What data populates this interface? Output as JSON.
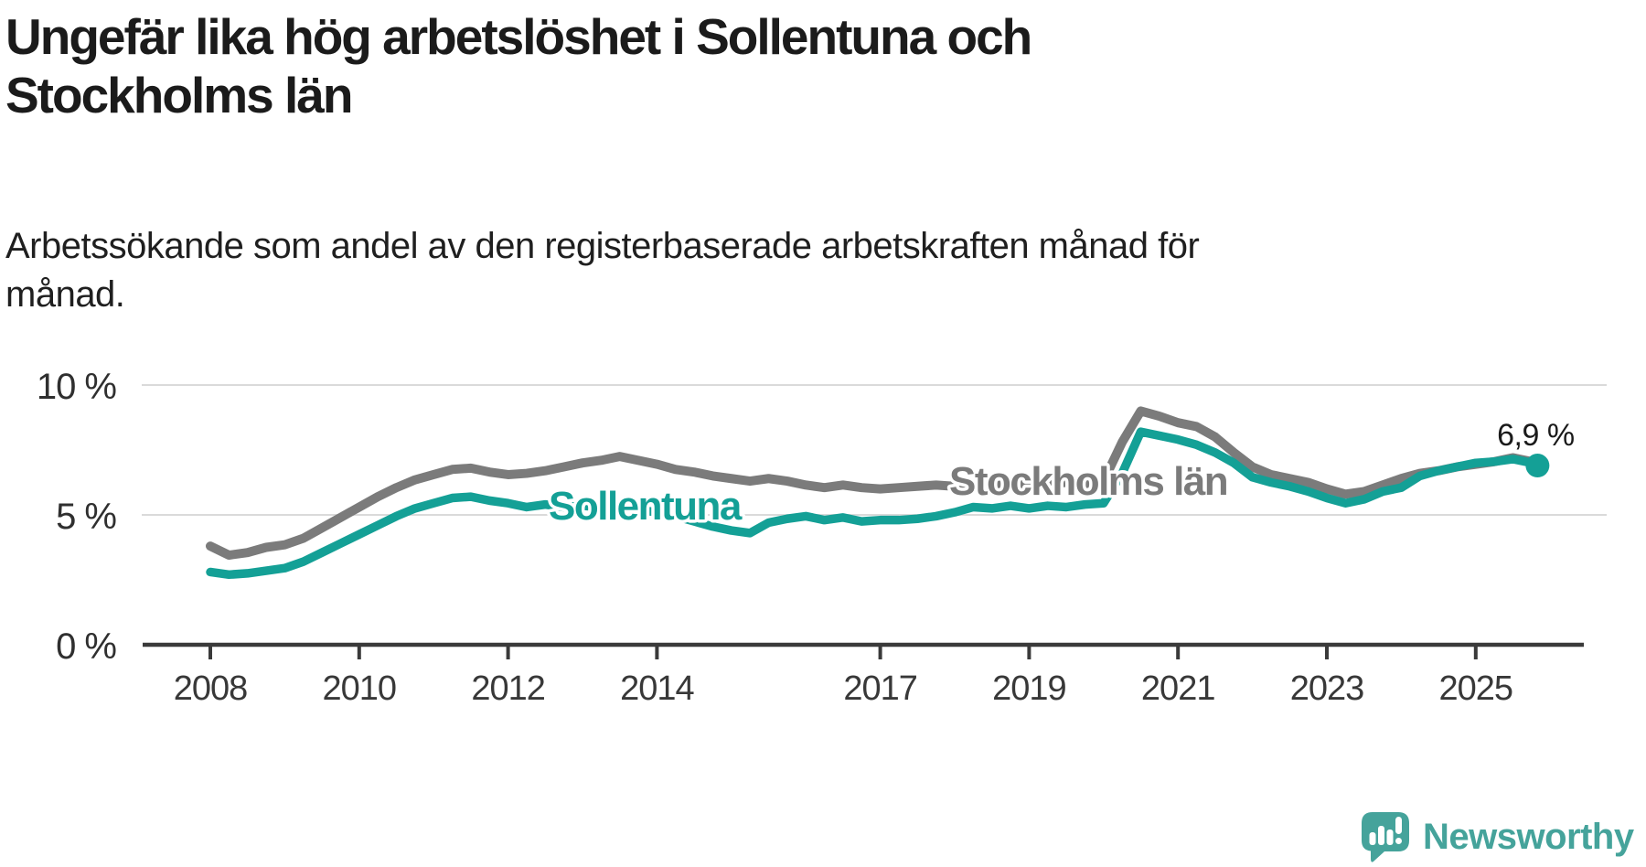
{
  "title": {
    "line1": "Ungefär lika hög arbetslöshet i Sollentuna och",
    "line2": "Stockholms län"
  },
  "subtitle": {
    "line1": "Arbetssökande som andel av den registerbaserade arbetskraften månad för",
    "line2": "månad."
  },
  "logo": {
    "text": "Newsworthy",
    "badge_icon": "bar-chart-exclamation-badge"
  },
  "colors": {
    "sollentuna": "#14A096",
    "stockholms_lan": "#7B7B7B",
    "axis": "#3A3A3A",
    "grid": "#DADADA",
    "text": "#1B1B1B",
    "tick_text": "#383838",
    "logo_teal": "#45A39B",
    "background": "#FFFFFF"
  },
  "chart_data": {
    "type": "line",
    "title": "Ungefär lika hög arbetslöshet i Sollentuna och Stockholms län",
    "subtitle": "Arbetssökande som andel av den registerbaserade arbetskraften månad för månad.",
    "xlabel": "",
    "ylabel": "",
    "legend_position": "inline-labels-on-lines",
    "grid": true,
    "x_range": [
      2008.0,
      2025.83
    ],
    "ylim": [
      0,
      10.6
    ],
    "x": [
      2008.0,
      2008.25,
      2008.5,
      2008.75,
      2009.0,
      2009.25,
      2009.5,
      2009.75,
      2010.0,
      2010.25,
      2010.5,
      2010.75,
      2011.0,
      2011.25,
      2011.5,
      2011.75,
      2012.0,
      2012.25,
      2012.5,
      2012.75,
      2013.0,
      2013.25,
      2013.5,
      2013.75,
      2014.0,
      2014.25,
      2014.5,
      2014.75,
      2015.0,
      2015.25,
      2015.5,
      2015.75,
      2016.0,
      2016.25,
      2016.5,
      2016.75,
      2017.0,
      2017.25,
      2017.5,
      2017.75,
      2018.0,
      2018.25,
      2018.5,
      2018.75,
      2019.0,
      2019.25,
      2019.5,
      2019.75,
      2020.0,
      2020.25,
      2020.5,
      2020.75,
      2021.0,
      2021.25,
      2021.5,
      2021.75,
      2022.0,
      2022.25,
      2022.5,
      2022.75,
      2023.0,
      2023.25,
      2023.5,
      2023.75,
      2024.0,
      2024.25,
      2024.5,
      2024.75,
      2025.0,
      2025.25,
      2025.5,
      2025.75,
      2025.83
    ],
    "x_axis": {
      "tick_years": [
        2008,
        2010,
        2012,
        2014,
        2017,
        2019,
        2021,
        2023,
        2025
      ],
      "tick_labels": [
        "2008",
        "2010",
        "2012",
        "2014",
        "2017",
        "2019",
        "2021",
        "2023",
        "2025"
      ]
    },
    "y_axis": {
      "tick_values": [
        0,
        5,
        10
      ],
      "tick_labels": [
        "0 %",
        "5 %",
        "10 %"
      ]
    },
    "series": [
      {
        "id": "sollentuna",
        "name": "Sollentuna",
        "color": "#14A096",
        "end_label": "6,9 %",
        "end_marker": true,
        "values": [
          2.8,
          2.7,
          2.75,
          2.85,
          2.95,
          3.2,
          3.55,
          3.9,
          4.25,
          4.6,
          4.95,
          5.25,
          5.45,
          5.65,
          5.7,
          5.55,
          5.45,
          5.3,
          5.4,
          5.3,
          5.35,
          5.3,
          5.3,
          5.2,
          5.1,
          4.95,
          4.75,
          4.55,
          4.4,
          4.3,
          4.7,
          4.85,
          4.95,
          4.8,
          4.9,
          4.75,
          4.8,
          4.8,
          4.85,
          4.95,
          5.1,
          5.3,
          5.25,
          5.35,
          5.25,
          5.35,
          5.3,
          5.4,
          5.45,
          6.6,
          8.2,
          8.05,
          7.9,
          7.7,
          7.4,
          7.0,
          6.45,
          6.25,
          6.1,
          5.9,
          5.65,
          5.45,
          5.6,
          5.9,
          6.05,
          6.5,
          6.7,
          6.85,
          7.0,
          7.05,
          7.15,
          7.0,
          6.9
        ]
      },
      {
        "id": "stockholms-lan",
        "name": "Stockholms län",
        "color": "#7B7B7B",
        "end_label": "",
        "end_marker": false,
        "values": [
          3.8,
          3.45,
          3.55,
          3.75,
          3.85,
          4.1,
          4.5,
          4.9,
          5.3,
          5.7,
          6.05,
          6.35,
          6.55,
          6.75,
          6.8,
          6.65,
          6.55,
          6.6,
          6.7,
          6.85,
          7.0,
          7.1,
          7.25,
          7.1,
          6.95,
          6.75,
          6.65,
          6.5,
          6.4,
          6.3,
          6.4,
          6.3,
          6.15,
          6.05,
          6.15,
          6.05,
          6.0,
          6.05,
          6.1,
          6.15,
          6.1,
          6.15,
          6.1,
          6.2,
          6.15,
          6.2,
          6.25,
          6.2,
          6.3,
          7.8,
          9.0,
          8.8,
          8.55,
          8.4,
          8.0,
          7.4,
          6.85,
          6.55,
          6.4,
          6.25,
          6.0,
          5.8,
          5.9,
          6.15,
          6.4,
          6.6,
          6.7,
          6.85,
          6.95,
          7.05,
          7.2,
          7.05,
          6.95
        ]
      }
    ]
  }
}
